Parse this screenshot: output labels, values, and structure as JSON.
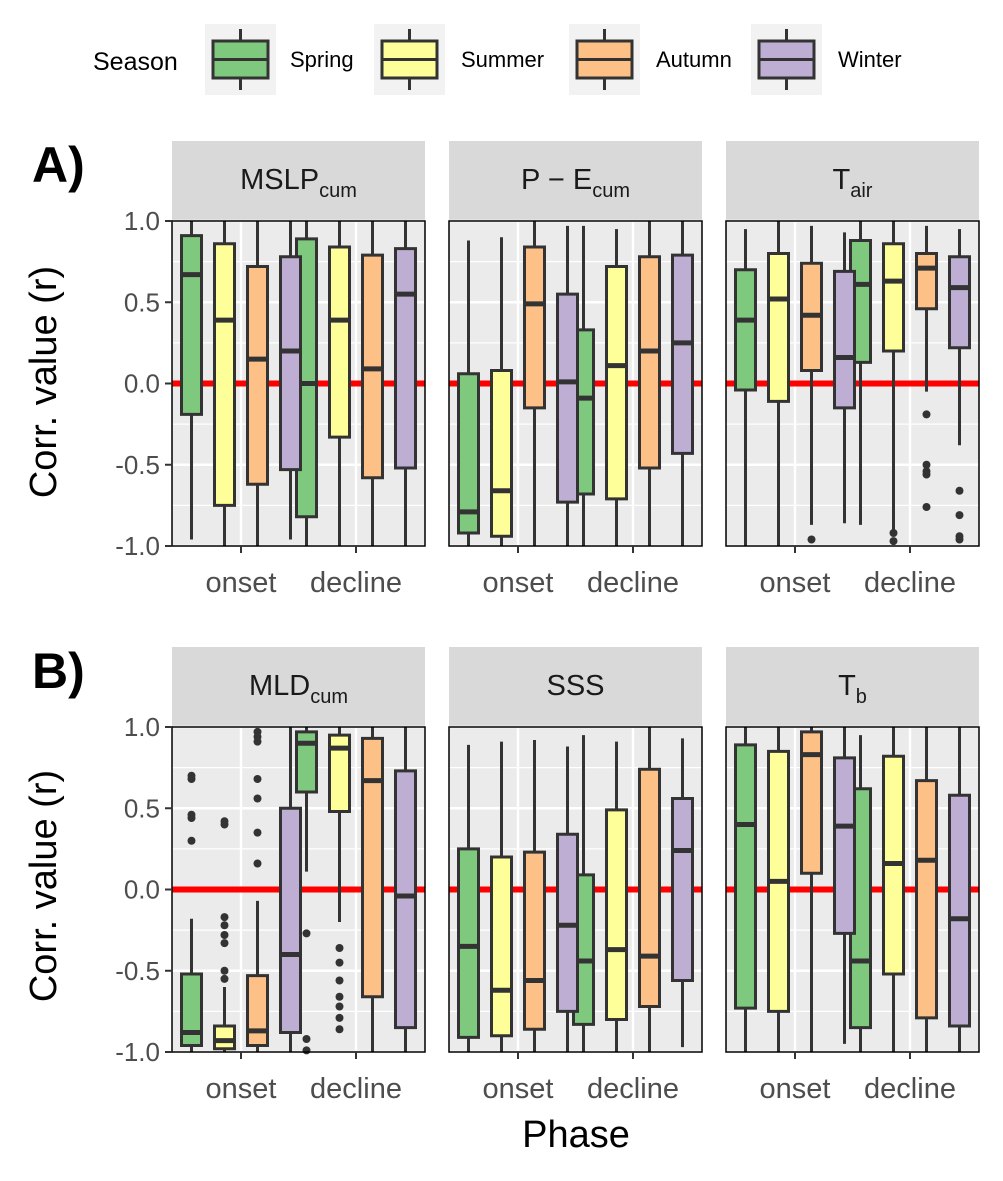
{
  "legend": {
    "title": "Season",
    "items": [
      {
        "label": "Spring",
        "color": "#7fc97f"
      },
      {
        "label": "Summer",
        "color": "#ffff99"
      },
      {
        "label": "Autumn",
        "color": "#fdc086"
      },
      {
        "label": "Winter",
        "color": "#beaed4"
      }
    ]
  },
  "axes": {
    "ylabel": "Corr. value (r)",
    "xlabel": "Phase",
    "yticks": [
      "1.0",
      "0.5",
      "0.0",
      "-0.5",
      "-1.0"
    ],
    "phases": [
      "onset",
      "decline"
    ]
  },
  "rows": [
    {
      "label": "A)"
    },
    {
      "label": "B)"
    }
  ],
  "colors": {
    "panel_bg": "#ebebeb",
    "strip_bg": "#d9d9d9",
    "grid": "#ffffff",
    "zero_line": "#ff0000",
    "box_stroke": "#333333"
  },
  "chart_data": [
    {
      "type": "box",
      "row": 0,
      "col": 0,
      "title_main": "MSLP",
      "title_sub": "cum",
      "ylim": [
        -1,
        1
      ],
      "categories": [
        "onset",
        "decline"
      ],
      "series": [
        {
          "name": "Spring",
          "boxes": [
            {
              "lo": -0.96,
              "q1": -0.19,
              "med": 0.67,
              "q3": 0.91,
              "hi": 1.0,
              "outliers": []
            },
            {
              "lo": -1.0,
              "q1": -0.82,
              "med": 0.0,
              "q3": 0.89,
              "hi": 1.0,
              "outliers": []
            }
          ]
        },
        {
          "name": "Summer",
          "boxes": [
            {
              "lo": -1.0,
              "q1": -0.75,
              "med": 0.39,
              "q3": 0.86,
              "hi": 1.0,
              "outliers": []
            },
            {
              "lo": -1.0,
              "q1": -0.33,
              "med": 0.39,
              "q3": 0.84,
              "hi": 1.0,
              "outliers": []
            }
          ]
        },
        {
          "name": "Autumn",
          "boxes": [
            {
              "lo": -1.0,
              "q1": -0.62,
              "med": 0.15,
              "q3": 0.72,
              "hi": 1.0,
              "outliers": []
            },
            {
              "lo": -1.0,
              "q1": -0.58,
              "med": 0.09,
              "q3": 0.79,
              "hi": 1.0,
              "outliers": []
            }
          ]
        },
        {
          "name": "Winter",
          "boxes": [
            {
              "lo": -0.96,
              "q1": -0.53,
              "med": 0.2,
              "q3": 0.78,
              "hi": 1.0,
              "outliers": []
            },
            {
              "lo": -1.0,
              "q1": -0.52,
              "med": 0.55,
              "q3": 0.83,
              "hi": 1.0,
              "outliers": []
            }
          ]
        }
      ]
    },
    {
      "type": "box",
      "row": 0,
      "col": 1,
      "title_main": "P − E",
      "title_sub": "cum",
      "ylim": [
        -1,
        1
      ],
      "categories": [
        "onset",
        "decline"
      ],
      "series": [
        {
          "name": "Spring",
          "boxes": [
            {
              "lo": -1.0,
              "q1": -0.92,
              "med": -0.79,
              "q3": 0.06,
              "hi": 0.88,
              "outliers": []
            },
            {
              "lo": -1.0,
              "q1": -0.68,
              "med": -0.09,
              "q3": 0.33,
              "hi": 0.97,
              "outliers": []
            }
          ]
        },
        {
          "name": "Summer",
          "boxes": [
            {
              "lo": -1.0,
              "q1": -0.94,
              "med": -0.66,
              "q3": 0.08,
              "hi": 0.9,
              "outliers": []
            },
            {
              "lo": -1.0,
              "q1": -0.71,
              "med": 0.11,
              "q3": 0.72,
              "hi": 0.95,
              "outliers": []
            }
          ]
        },
        {
          "name": "Autumn",
          "boxes": [
            {
              "lo": -1.0,
              "q1": -0.15,
              "med": 0.49,
              "q3": 0.84,
              "hi": 1.0,
              "outliers": []
            },
            {
              "lo": -1.0,
              "q1": -0.52,
              "med": 0.2,
              "q3": 0.78,
              "hi": 1.0,
              "outliers": []
            }
          ]
        },
        {
          "name": "Winter",
          "boxes": [
            {
              "lo": -1.0,
              "q1": -0.73,
              "med": 0.01,
              "q3": 0.55,
              "hi": 0.97,
              "outliers": []
            },
            {
              "lo": -1.0,
              "q1": -0.43,
              "med": 0.25,
              "q3": 0.79,
              "hi": 1.0,
              "outliers": []
            }
          ]
        }
      ]
    },
    {
      "type": "box",
      "row": 0,
      "col": 2,
      "title_main": "T",
      "title_sub": "air",
      "ylim": [
        -1,
        1
      ],
      "categories": [
        "onset",
        "decline"
      ],
      "series": [
        {
          "name": "Spring",
          "boxes": [
            {
              "lo": -1.0,
              "q1": -0.04,
              "med": 0.39,
              "q3": 0.7,
              "hi": 0.95,
              "outliers": []
            },
            {
              "lo": -0.87,
              "q1": 0.13,
              "med": 0.61,
              "q3": 0.88,
              "hi": 1.0,
              "outliers": []
            }
          ]
        },
        {
          "name": "Summer",
          "boxes": [
            {
              "lo": -1.0,
              "q1": -0.11,
              "med": 0.52,
              "q3": 0.8,
              "hi": 1.0,
              "outliers": []
            },
            {
              "lo": -0.9,
              "q1": 0.2,
              "med": 0.63,
              "q3": 0.86,
              "hi": 1.0,
              "outliers": [
                -0.92,
                -0.97
              ]
            }
          ]
        },
        {
          "name": "Autumn",
          "boxes": [
            {
              "lo": -0.87,
              "q1": 0.08,
              "med": 0.42,
              "q3": 0.74,
              "hi": 0.97,
              "outliers": [
                -0.96
              ]
            },
            {
              "lo": -0.05,
              "q1": 0.46,
              "med": 0.71,
              "q3": 0.8,
              "hi": 0.97,
              "outliers": [
                -0.19,
                -0.5,
                -0.54,
                -0.56,
                -0.76
              ]
            }
          ]
        },
        {
          "name": "Winter",
          "boxes": [
            {
              "lo": -0.86,
              "q1": -0.15,
              "med": 0.16,
              "q3": 0.69,
              "hi": 0.93,
              "outliers": []
            },
            {
              "lo": -0.38,
              "q1": 0.22,
              "med": 0.59,
              "q3": 0.78,
              "hi": 0.95,
              "outliers": [
                -0.66,
                -0.81,
                -0.94,
                -0.96
              ]
            }
          ]
        }
      ]
    },
    {
      "type": "box",
      "row": 1,
      "col": 0,
      "title_main": "MLD",
      "title_sub": "cum",
      "ylim": [
        -1,
        1
      ],
      "categories": [
        "onset",
        "decline"
      ],
      "series": [
        {
          "name": "Spring",
          "boxes": [
            {
              "lo": -1.0,
              "q1": -0.96,
              "med": -0.88,
              "q3": -0.52,
              "hi": -0.18,
              "outliers": [
                0.3,
                0.44,
                0.46,
                0.68,
                0.7
              ]
            },
            {
              "lo": 0.11,
              "q1": 0.6,
              "med": 0.9,
              "q3": 0.97,
              "hi": 1.0,
              "outliers": [
                -0.27,
                -0.92,
                -0.99
              ]
            }
          ]
        },
        {
          "name": "Summer",
          "boxes": [
            {
              "lo": -1.0,
              "q1": -0.98,
              "med": -0.93,
              "q3": -0.84,
              "hi": -0.6,
              "outliers": [
                0.4,
                0.42,
                -0.17,
                -0.22,
                -0.28,
                -0.33,
                -0.5,
                -0.55
              ]
            },
            {
              "lo": -0.2,
              "q1": 0.48,
              "med": 0.87,
              "q3": 0.95,
              "hi": 1.0,
              "outliers": [
                -0.36,
                -0.45,
                -0.56,
                -0.66,
                -0.72,
                -0.79,
                -0.86
              ]
            }
          ]
        },
        {
          "name": "Autumn",
          "boxes": [
            {
              "lo": -1.0,
              "q1": -0.96,
              "med": -0.87,
              "q3": -0.53,
              "hi": -0.07,
              "outliers": [
                0.16,
                0.35,
                0.56,
                0.68,
                0.91,
                0.94,
                0.97
              ]
            },
            {
              "lo": -1.0,
              "q1": -0.66,
              "med": 0.67,
              "q3": 0.93,
              "hi": 1.0,
              "outliers": []
            }
          ]
        },
        {
          "name": "Winter",
          "boxes": [
            {
              "lo": -1.0,
              "q1": -0.88,
              "med": -0.4,
              "q3": 0.5,
              "hi": 1.0,
              "outliers": []
            },
            {
              "lo": -1.0,
              "q1": -0.85,
              "med": -0.04,
              "q3": 0.73,
              "hi": 1.0,
              "outliers": []
            }
          ]
        }
      ]
    },
    {
      "type": "box",
      "row": 1,
      "col": 1,
      "title_main": "SSS",
      "title_sub": "",
      "ylim": [
        -1,
        1
      ],
      "categories": [
        "onset",
        "decline"
      ],
      "series": [
        {
          "name": "Spring",
          "boxes": [
            {
              "lo": -1.0,
              "q1": -0.91,
              "med": -0.35,
              "q3": 0.25,
              "hi": 0.89,
              "outliers": []
            },
            {
              "lo": -1.0,
              "q1": -0.83,
              "med": -0.44,
              "q3": 0.09,
              "hi": 0.95,
              "outliers": []
            }
          ]
        },
        {
          "name": "Summer",
          "boxes": [
            {
              "lo": -1.0,
              "q1": -0.9,
              "med": -0.62,
              "q3": 0.2,
              "hi": 0.91,
              "outliers": []
            },
            {
              "lo": -1.0,
              "q1": -0.8,
              "med": -0.37,
              "q3": 0.49,
              "hi": 0.91,
              "outliers": []
            }
          ]
        },
        {
          "name": "Autumn",
          "boxes": [
            {
              "lo": -1.0,
              "q1": -0.86,
              "med": -0.56,
              "q3": 0.23,
              "hi": 0.92,
              "outliers": []
            },
            {
              "lo": -1.0,
              "q1": -0.72,
              "med": -0.41,
              "q3": 0.74,
              "hi": 1.0,
              "outliers": []
            }
          ]
        },
        {
          "name": "Winter",
          "boxes": [
            {
              "lo": -1.0,
              "q1": -0.75,
              "med": -0.22,
              "q3": 0.34,
              "hi": 0.88,
              "outliers": []
            },
            {
              "lo": -0.97,
              "q1": -0.56,
              "med": 0.24,
              "q3": 0.56,
              "hi": 0.93,
              "outliers": []
            }
          ]
        }
      ]
    },
    {
      "type": "box",
      "row": 1,
      "col": 2,
      "title_main": "T",
      "title_sub": "b",
      "ylim": [
        -1,
        1
      ],
      "categories": [
        "onset",
        "decline"
      ],
      "series": [
        {
          "name": "Spring",
          "boxes": [
            {
              "lo": -1.0,
              "q1": -0.73,
              "med": 0.4,
              "q3": 0.89,
              "hi": 1.0,
              "outliers": []
            },
            {
              "lo": -1.0,
              "q1": -0.85,
              "med": -0.44,
              "q3": 0.62,
              "hi": 0.95,
              "outliers": []
            }
          ]
        },
        {
          "name": "Summer",
          "boxes": [
            {
              "lo": -1.0,
              "q1": -0.75,
              "med": 0.05,
              "q3": 0.85,
              "hi": 1.0,
              "outliers": []
            },
            {
              "lo": -1.0,
              "q1": -0.52,
              "med": 0.16,
              "q3": 0.82,
              "hi": 1.0,
              "outliers": []
            }
          ]
        },
        {
          "name": "Autumn",
          "boxes": [
            {
              "lo": -1.0,
              "q1": 0.1,
              "med": 0.83,
              "q3": 0.97,
              "hi": 1.0,
              "outliers": []
            },
            {
              "lo": -1.0,
              "q1": -0.79,
              "med": 0.18,
              "q3": 0.67,
              "hi": 1.0,
              "outliers": []
            }
          ]
        },
        {
          "name": "Winter",
          "boxes": [
            {
              "lo": -0.95,
              "q1": -0.27,
              "med": 0.39,
              "q3": 0.81,
              "hi": 1.0,
              "outliers": []
            },
            {
              "lo": -1.0,
              "q1": -0.84,
              "med": -0.18,
              "q3": 0.58,
              "hi": 1.0,
              "outliers": []
            }
          ]
        }
      ]
    }
  ]
}
